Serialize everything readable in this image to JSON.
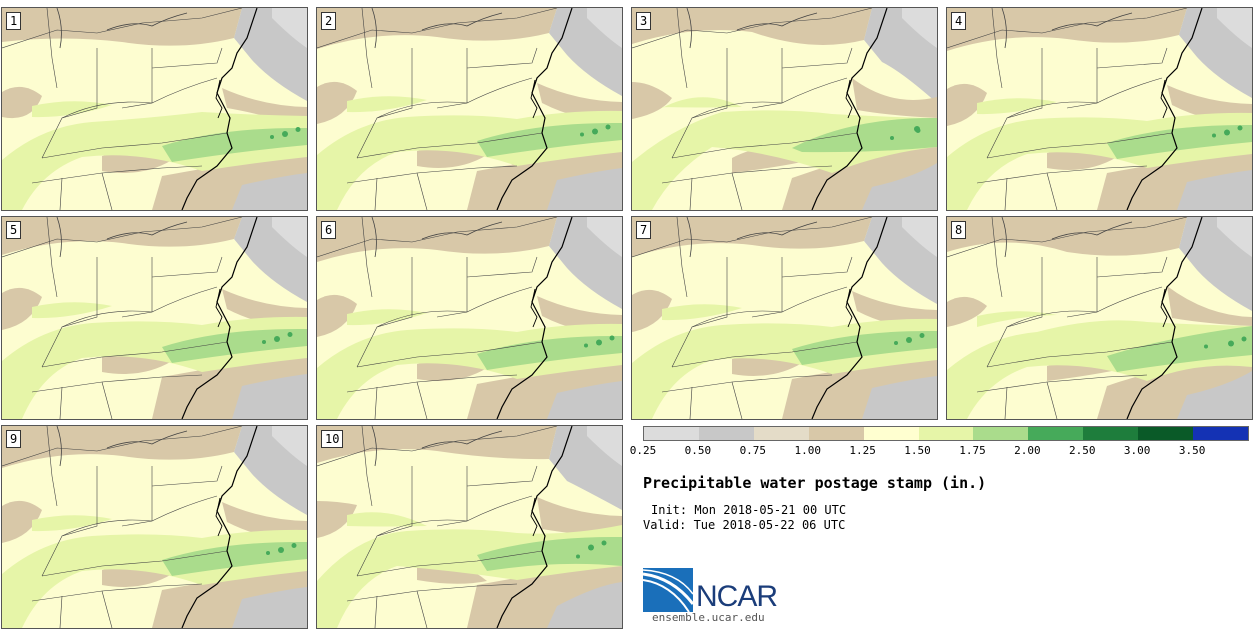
{
  "title": "Precipitable water postage stamp (in.)",
  "init_label": "Init: Mon 2018-05-21 00 UTC",
  "valid_label": "Valid: Tue 2018-05-22 06 UTC",
  "logo_text": "NCAR",
  "url": "ensemble.ucar.edu",
  "members": [
    "1",
    "2",
    "3",
    "4",
    "5",
    "6",
    "7",
    "8",
    "9",
    "10"
  ],
  "colorbar": {
    "colors": [
      "#dcdcdc",
      "#c8c8c8",
      "#e4dcc8",
      "#d8c8a8",
      "#ffffd0",
      "#e6f5a8",
      "#aadc8c",
      "#46aa5a",
      "#1e7d3c",
      "#0a5a28",
      "#1432b4"
    ],
    "ticks": [
      "0.25",
      "0.50",
      "0.75",
      "1.00",
      "1.25",
      "1.50",
      "1.75",
      "2.00",
      "2.50",
      "3.00",
      "3.50"
    ]
  }
}
